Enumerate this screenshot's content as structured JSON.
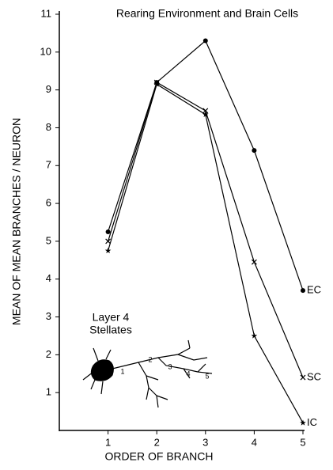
{
  "chart_data": {
    "type": "line",
    "title": "Rearing Environment and Brain Cells",
    "xlabel": "ORDER OF BRANCH",
    "ylabel": "MEAN OF MEAN BRANCHES / NEURON",
    "x": [
      1,
      2,
      3,
      4,
      5
    ],
    "xlim": [
      0,
      5
    ],
    "xticks": [
      1,
      2,
      3,
      4,
      5
    ],
    "ylim": [
      0,
      11
    ],
    "yticks": [
      1,
      2,
      3,
      4,
      5,
      6,
      7,
      8,
      9,
      10,
      11
    ],
    "grid": false,
    "series": [
      {
        "name": "EC",
        "color": "#000000",
        "marker": "circle",
        "values": [
          5.25,
          9.2,
          10.3,
          7.4,
          3.7
        ]
      },
      {
        "name": "SC",
        "color": "#000000",
        "marker": "x",
        "values": [
          5.0,
          9.2,
          8.45,
          4.45,
          1.4
        ]
      },
      {
        "name": "IC",
        "color": "#000000",
        "marker": "star",
        "values": [
          4.75,
          9.15,
          8.35,
          2.5,
          0.2
        ]
      }
    ],
    "inset_title": [
      "Layer 4",
      "Stellates"
    ],
    "inset_branch_labels": [
      "1",
      "2",
      "3",
      "4",
      "5"
    ]
  }
}
